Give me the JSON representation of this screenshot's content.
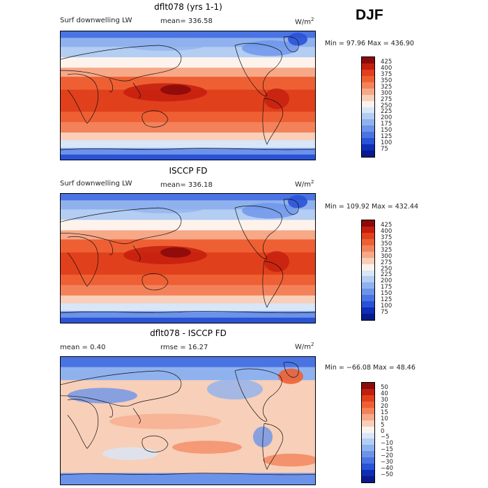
{
  "season": "DJF",
  "panels": [
    {
      "title": "dflt078 (yrs 1-1)",
      "field": "Surf downwelling LW",
      "stat": "mean= 336.58",
      "units": "W/m",
      "units_sup": "2",
      "minmax": "Min =   97.96 Max = 436.90",
      "levels": [
        "425",
        "400",
        "375",
        "350",
        "325",
        "300",
        "275",
        "250",
        "225",
        "200",
        "175",
        "150",
        "125",
        "100",
        "75"
      ],
      "palette": "seq"
    },
    {
      "title": "ISCCP FD",
      "field": "Surf downwelling LW",
      "stat": "mean= 336.18",
      "units": "W/m",
      "units_sup": "2",
      "minmax": "Min = 109.92 Max = 432.44",
      "levels": [
        "425",
        "400",
        "375",
        "350",
        "325",
        "300",
        "275",
        "250",
        "225",
        "200",
        "175",
        "150",
        "125",
        "100",
        "75"
      ],
      "palette": "seq"
    },
    {
      "title": "dflt078 - ISCCP FD",
      "field": "mean =    0.40",
      "stat": "rmse =   16.27",
      "units": "W/m",
      "units_sup": "2",
      "minmax": "Min = −66.08 Max =   48.46",
      "levels": [
        "50",
        "40",
        "30",
        "20",
        "15",
        "10",
        "5",
        "0",
        "−5",
        "−10",
        "−15",
        "−20",
        "−30",
        "−40",
        "−50"
      ],
      "palette": "div"
    }
  ],
  "colors": {
    "seq": [
      "#8b0a0a",
      "#c41e0e",
      "#e0401c",
      "#ee6034",
      "#f3825a",
      "#f6a887",
      "#f8cfb8",
      "#fdf3ec",
      "#d8e6f8",
      "#b3cdf3",
      "#8fb2ee",
      "#6c93ea",
      "#4a74e4",
      "#2a52d6",
      "#0e2db8",
      "#0a1a8c"
    ],
    "div": [
      "#8b0a0a",
      "#c41e0e",
      "#e0401c",
      "#ee6034",
      "#f3825a",
      "#f6a887",
      "#f8cfb8",
      "#fdf3ec",
      "#d8e6f8",
      "#b3cdf3",
      "#8fb2ee",
      "#6c93ea",
      "#4a74e4",
      "#2a52d6",
      "#0e2db8",
      "#0a1a8c"
    ]
  }
}
